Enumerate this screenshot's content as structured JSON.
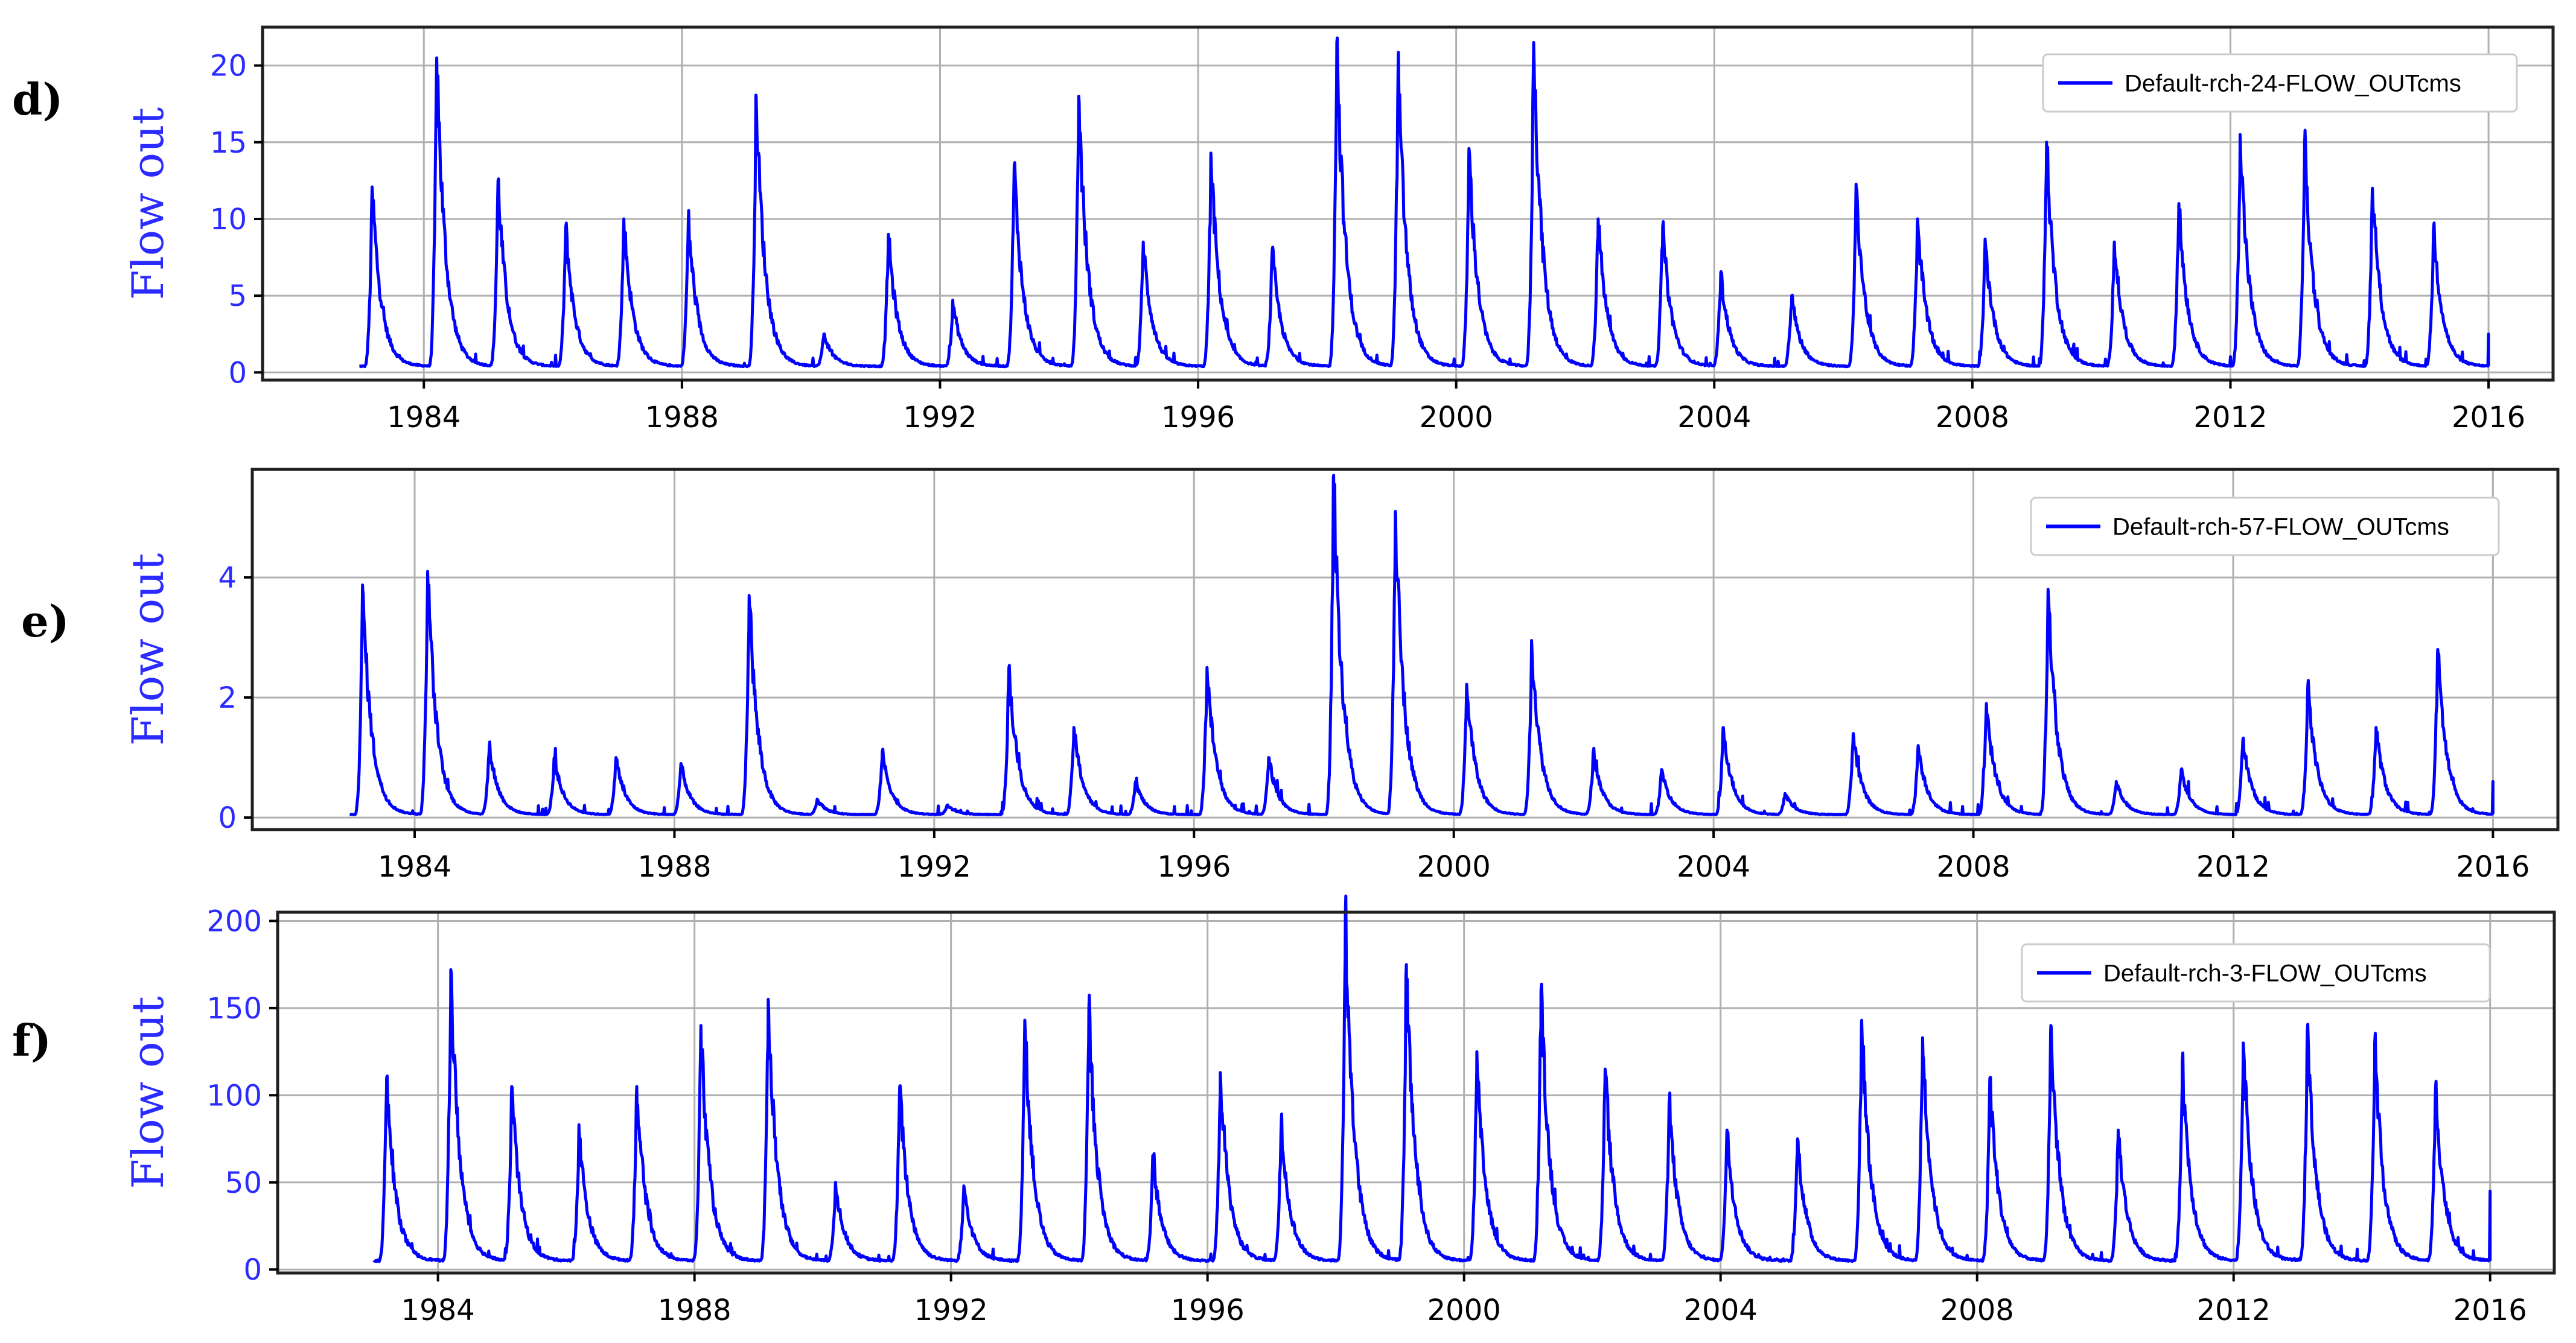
{
  "chart_data": [
    {
      "type": "line",
      "panel_label": "d)",
      "ylabel": "Flow out",
      "legend": "Default-rch-24-FLOW_OUTcms",
      "legend_position": "top-right",
      "grid": true,
      "xlim": [
        1981.5,
        2017.0
      ],
      "ylim": [
        -0.5,
        22.5
      ],
      "xticks": [
        1984,
        1988,
        1992,
        1996,
        2000,
        2004,
        2008,
        2012,
        2016
      ],
      "yticks": [
        0,
        5,
        10,
        15,
        20
      ],
      "baseflow": 0.4,
      "start": 1983.0,
      "end": 2016.0,
      "end_value": 2.5,
      "peaks": [
        [
          1983.2,
          12.0
        ],
        [
          1984.2,
          20.5
        ],
        [
          1985.15,
          12.5
        ],
        [
          1986.2,
          9.5
        ],
        [
          1987.1,
          10.0
        ],
        [
          1988.1,
          10.0
        ],
        [
          1989.15,
          18.0
        ],
        [
          1990.2,
          2.5
        ],
        [
          1991.2,
          9.0
        ],
        [
          1992.2,
          4.5
        ],
        [
          1993.15,
          13.5
        ],
        [
          1994.15,
          18.0
        ],
        [
          1995.15,
          8.5
        ],
        [
          1996.2,
          14.0
        ],
        [
          1997.15,
          8.0
        ],
        [
          1998.15,
          21.5
        ],
        [
          1999.1,
          20.0
        ],
        [
          2000.2,
          14.5
        ],
        [
          2001.2,
          21.5
        ],
        [
          2002.2,
          10.0
        ],
        [
          2003.2,
          9.5
        ],
        [
          2004.1,
          6.5
        ],
        [
          2005.2,
          5.0
        ],
        [
          2006.2,
          12.0
        ],
        [
          2007.15,
          10.0
        ],
        [
          2008.2,
          8.5
        ],
        [
          2009.15,
          15.0
        ],
        [
          2010.2,
          8.5
        ],
        [
          2011.2,
          11.0
        ],
        [
          2012.15,
          15.5
        ],
        [
          2013.15,
          15.0
        ],
        [
          2014.2,
          12.0
        ],
        [
          2015.15,
          9.5
        ]
      ]
    },
    {
      "type": "line",
      "panel_label": "e)",
      "ylabel": "Flow out",
      "legend": "Default-rch-57-FLOW_OUTcms",
      "legend_position": "top-right",
      "grid": true,
      "xlim": [
        1981.5,
        2017.0
      ],
      "ylim": [
        -0.2,
        5.8
      ],
      "xticks": [
        1984,
        1988,
        1992,
        1996,
        2000,
        2004,
        2008,
        2012,
        2016
      ],
      "yticks": [
        0,
        2,
        4
      ],
      "baseflow": 0.05,
      "start": 1983.0,
      "end": 2016.0,
      "end_value": 0.6,
      "peaks": [
        [
          1983.2,
          3.8
        ],
        [
          1984.2,
          4.1
        ],
        [
          1985.15,
          1.2
        ],
        [
          1986.15,
          1.0
        ],
        [
          1987.1,
          1.0
        ],
        [
          1988.1,
          0.9
        ],
        [
          1989.15,
          3.7
        ],
        [
          1990.2,
          0.3
        ],
        [
          1991.2,
          1.1
        ],
        [
          1992.2,
          0.2
        ],
        [
          1993.15,
          2.5
        ],
        [
          1994.15,
          1.5
        ],
        [
          1995.1,
          0.6
        ],
        [
          1996.2,
          2.5
        ],
        [
          1997.15,
          1.0
        ],
        [
          1998.15,
          5.7
        ],
        [
          1999.1,
          5.1
        ],
        [
          2000.2,
          2.2
        ],
        [
          2001.2,
          2.9
        ],
        [
          2002.15,
          1.1
        ],
        [
          2003.2,
          0.8
        ],
        [
          2004.15,
          1.5
        ],
        [
          2005.1,
          0.4
        ],
        [
          2006.15,
          1.4
        ],
        [
          2007.15,
          1.2
        ],
        [
          2008.2,
          1.9
        ],
        [
          2009.15,
          3.8
        ],
        [
          2010.2,
          0.6
        ],
        [
          2011.2,
          0.8
        ],
        [
          2012.15,
          1.3
        ],
        [
          2013.15,
          2.2
        ],
        [
          2014.2,
          1.5
        ],
        [
          2015.15,
          2.8
        ]
      ]
    },
    {
      "type": "line",
      "panel_label": "f)",
      "ylabel": "Flow out",
      "legend": "Default-rch-3-FLOW_OUTcms",
      "legend_position": "top-right",
      "grid": true,
      "xlim": [
        1981.5,
        2017.0
      ],
      "ylim": [
        -2,
        205
      ],
      "xticks": [
        1984,
        1988,
        1992,
        1996,
        2000,
        2004,
        2008,
        2012,
        2016
      ],
      "yticks": [
        0,
        50,
        100,
        150,
        200
      ],
      "baseflow": 5,
      "start": 1983.0,
      "end": 2016.0,
      "end_value": 45,
      "peaks": [
        [
          1983.2,
          110
        ],
        [
          1984.2,
          172
        ],
        [
          1985.15,
          105
        ],
        [
          1986.2,
          80
        ],
        [
          1987.1,
          105
        ],
        [
          1988.1,
          140
        ],
        [
          1989.15,
          155
        ],
        [
          1990.2,
          50
        ],
        [
          1991.2,
          105
        ],
        [
          1992.2,
          48
        ],
        [
          1993.15,
          143
        ],
        [
          1994.15,
          150
        ],
        [
          1995.15,
          65
        ],
        [
          1996.2,
          113
        ],
        [
          1997.15,
          85
        ],
        [
          1998.15,
          205
        ],
        [
          1999.1,
          175
        ],
        [
          2000.2,
          125
        ],
        [
          2001.2,
          160
        ],
        [
          2002.2,
          115
        ],
        [
          2003.2,
          95
        ],
        [
          2004.1,
          80
        ],
        [
          2005.2,
          75
        ],
        [
          2006.2,
          143
        ],
        [
          2007.15,
          133
        ],
        [
          2008.2,
          110
        ],
        [
          2009.15,
          140
        ],
        [
          2010.2,
          80
        ],
        [
          2011.2,
          120
        ],
        [
          2012.15,
          130
        ],
        [
          2013.15,
          137
        ],
        [
          2014.2,
          130
        ],
        [
          2015.15,
          105
        ]
      ]
    }
  ]
}
